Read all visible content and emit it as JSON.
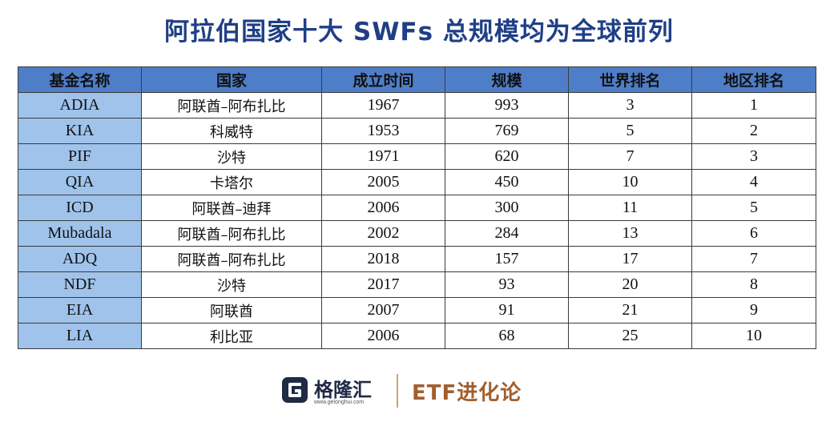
{
  "title": "阿拉伯国家十大 SWFs 总规模均为全球前列",
  "table": {
    "headers": [
      "基金名称",
      "国家",
      "成立时间",
      "规模",
      "世界排名",
      "地区排名"
    ],
    "rows": [
      [
        "ADIA",
        "阿联酋–阿布扎比",
        "1967",
        "993",
        "3",
        "1"
      ],
      [
        "KIA",
        "科威特",
        "1953",
        "769",
        "5",
        "2"
      ],
      [
        "PIF",
        "沙特",
        "1971",
        "620",
        "7",
        "3"
      ],
      [
        "QIA",
        "卡塔尔",
        "2005",
        "450",
        "10",
        "4"
      ],
      [
        "ICD",
        "阿联酋–迪拜",
        "2006",
        "300",
        "11",
        "5"
      ],
      [
        "Mubadala",
        "阿联酋–阿布扎比",
        "2002",
        "284",
        "13",
        "6"
      ],
      [
        "ADQ",
        "阿联酋–阿布扎比",
        "2018",
        "157",
        "17",
        "7"
      ],
      [
        "NDF",
        "沙特",
        "2017",
        "93",
        "20",
        "8"
      ],
      [
        "EIA",
        "阿联酋",
        "2007",
        "91",
        "21",
        "9"
      ],
      [
        "LIA",
        "利比亚",
        "2006",
        "68",
        "25",
        "10"
      ]
    ]
  },
  "footer": {
    "logo_text": "格隆汇",
    "logo_url": "www.gelonghui.com",
    "brand_text": "ETF进化论"
  },
  "colors": {
    "title": "#1f3f86",
    "header_bg": "#4f7ec9",
    "fund_cell_bg": "#9fc3eb",
    "brand": "#a15f2d"
  },
  "icons": {
    "logo": "gelonghui-g-logo-icon"
  }
}
